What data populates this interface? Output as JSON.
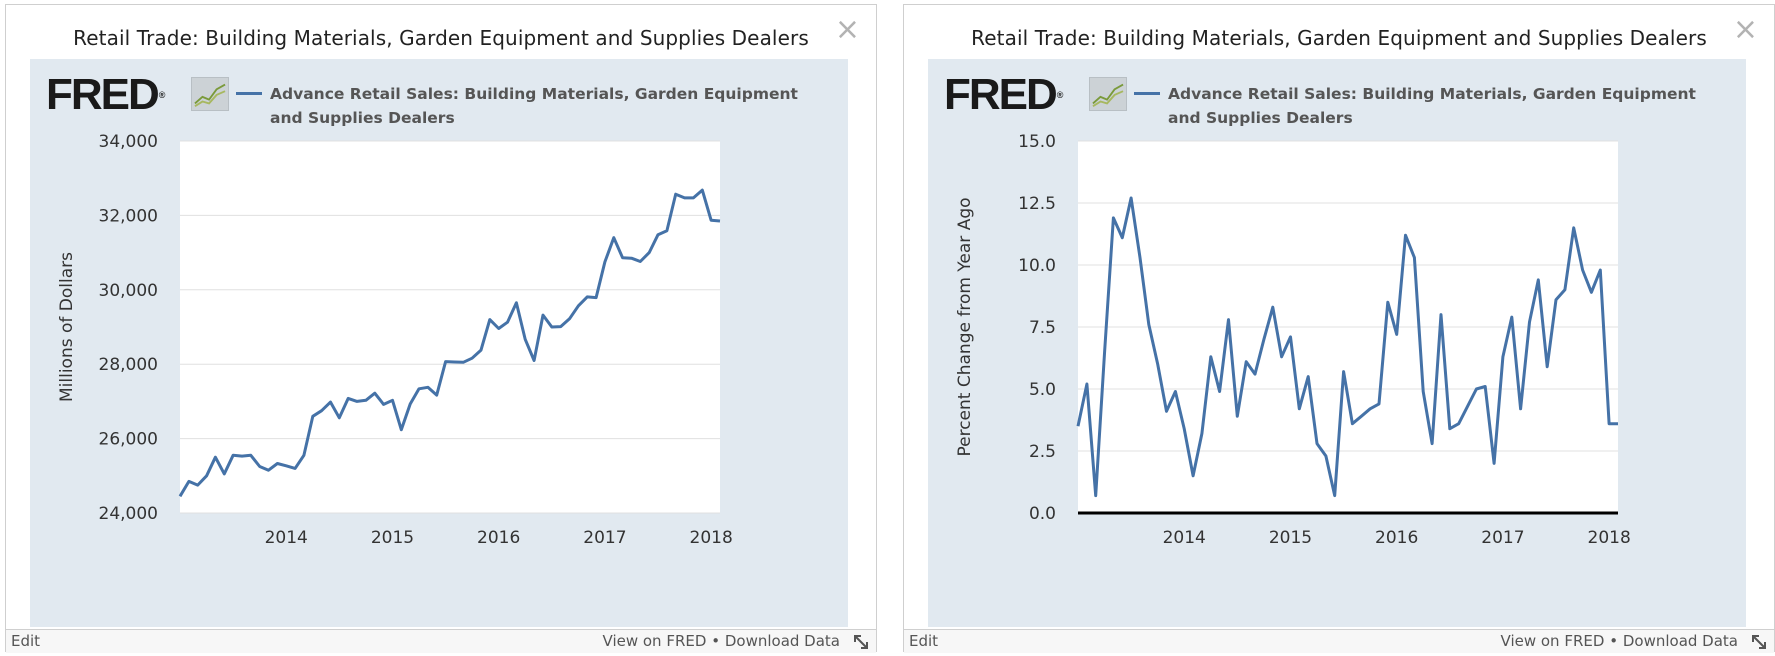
{
  "widgets": [
    {
      "title": "Retail Trade: Building Materials, Garden Equipment and Supplies Dealers",
      "close_label": "×",
      "logo_text": "FRED",
      "logo_reg": "®",
      "legend_label": "Advance Retail Sales: Building Materials, Garden Equipment and Supplies Dealers",
      "edit_label": "Edit",
      "view_label": "View on FRED",
      "separator": "•",
      "download_label": "Download Data"
    },
    {
      "title": "Retail Trade: Building Materials, Garden Equipment and Supplies Dealers",
      "close_label": "×",
      "logo_text": "FRED",
      "logo_reg": "®",
      "legend_label": "Advance Retail Sales: Building Materials, Garden Equipment and Supplies Dealers",
      "edit_label": "Edit",
      "view_label": "View on FRED",
      "separator": "•",
      "download_label": "Download Data"
    }
  ],
  "colors": {
    "series": "#4572a7",
    "panel_bg": "#e1e9f0",
    "plot_bg": "#ffffff",
    "gridline": "#e0e0e0",
    "zero_line": "#000000"
  },
  "chart_data": [
    {
      "type": "line",
      "title": "",
      "xlabel": "",
      "ylabel": "Millions of Dollars",
      "xlim": [
        "2013-01",
        "2018-02"
      ],
      "ylim": [
        24000,
        34000
      ],
      "y_ticks": [
        "24,000",
        "26,000",
        "28,000",
        "30,000",
        "32,000",
        "34,000"
      ],
      "y_tick_values": [
        24000,
        26000,
        28000,
        30000,
        32000,
        34000
      ],
      "x_ticks": [
        "2014",
        "2015",
        "2016",
        "2017",
        "2018"
      ],
      "x_tick_dates": [
        "2014-01",
        "2015-01",
        "2016-01",
        "2017-01",
        "2018-01"
      ],
      "grid": true,
      "legend_position": "top",
      "series": [
        {
          "name": "Advance Retail Sales: Building Materials, Garden Equipment and Supplies Dealers",
          "x": [
            "2013-01",
            "2013-02",
            "2013-03",
            "2013-04",
            "2013-05",
            "2013-06",
            "2013-07",
            "2013-08",
            "2013-09",
            "2013-10",
            "2013-11",
            "2013-12",
            "2014-01",
            "2014-02",
            "2014-03",
            "2014-04",
            "2014-05",
            "2014-06",
            "2014-07",
            "2014-08",
            "2014-09",
            "2014-10",
            "2014-11",
            "2014-12",
            "2015-01",
            "2015-02",
            "2015-03",
            "2015-04",
            "2015-05",
            "2015-06",
            "2015-07",
            "2015-08",
            "2015-09",
            "2015-10",
            "2015-11",
            "2015-12",
            "2016-01",
            "2016-02",
            "2016-03",
            "2016-04",
            "2016-05",
            "2016-06",
            "2016-07",
            "2016-08",
            "2016-09",
            "2016-10",
            "2016-11",
            "2016-12",
            "2017-01",
            "2017-02",
            "2017-03",
            "2017-04",
            "2017-05",
            "2017-06",
            "2017-07",
            "2017-08",
            "2017-09",
            "2017-10",
            "2017-11",
            "2017-12",
            "2018-01",
            "2018-02"
          ],
          "values": [
            24450,
            24850,
            24750,
            25000,
            25500,
            25050,
            25550,
            25530,
            25550,
            25250,
            25150,
            25330,
            25270,
            25200,
            25550,
            26600,
            26750,
            26980,
            26560,
            27080,
            27000,
            27030,
            27220,
            26920,
            27030,
            26240,
            26930,
            27340,
            27380,
            27170,
            28070,
            28060,
            28050,
            28160,
            28380,
            29200,
            28960,
            29130,
            29650,
            28670,
            28100,
            29320,
            29000,
            29010,
            29220,
            29570,
            29810,
            29790,
            30750,
            31400,
            30860,
            30850,
            30760,
            31000,
            31480,
            31590,
            32570,
            32470,
            32470,
            32680,
            31870,
            31850
          ]
        }
      ]
    },
    {
      "type": "line",
      "title": "",
      "xlabel": "",
      "ylabel": "Percent Change from Year Ago",
      "xlim": [
        "2013-01",
        "2018-02"
      ],
      "ylim": [
        0,
        15
      ],
      "y_ticks": [
        "0.0",
        "2.5",
        "5.0",
        "7.5",
        "10.0",
        "12.5",
        "15.0"
      ],
      "y_tick_values": [
        0,
        2.5,
        5,
        7.5,
        10,
        12.5,
        15
      ],
      "x_ticks": [
        "2014",
        "2015",
        "2016",
        "2017",
        "2018"
      ],
      "x_tick_dates": [
        "2014-01",
        "2015-01",
        "2016-01",
        "2017-01",
        "2018-01"
      ],
      "grid": true,
      "zero_line": true,
      "legend_position": "top",
      "series": [
        {
          "name": "Advance Retail Sales: Building Materials, Garden Equipment and Supplies Dealers",
          "x": [
            "2013-01",
            "2013-02",
            "2013-03",
            "2013-04",
            "2013-05",
            "2013-06",
            "2013-07",
            "2013-08",
            "2013-09",
            "2013-10",
            "2013-11",
            "2013-12",
            "2014-01",
            "2014-02",
            "2014-03",
            "2014-04",
            "2014-05",
            "2014-06",
            "2014-07",
            "2014-08",
            "2014-09",
            "2014-10",
            "2014-11",
            "2014-12",
            "2015-01",
            "2015-02",
            "2015-03",
            "2015-04",
            "2015-05",
            "2015-06",
            "2015-07",
            "2015-08",
            "2015-09",
            "2015-10",
            "2015-11",
            "2015-12",
            "2016-01",
            "2016-02",
            "2016-03",
            "2016-04",
            "2016-05",
            "2016-06",
            "2016-07",
            "2016-08",
            "2016-09",
            "2016-10",
            "2016-11",
            "2016-12",
            "2017-01",
            "2017-02",
            "2017-03",
            "2017-04",
            "2017-05",
            "2017-06",
            "2017-07",
            "2017-08",
            "2017-09",
            "2017-10",
            "2017-11",
            "2017-12",
            "2018-01",
            "2018-02"
          ],
          "values": [
            3.5,
            5.2,
            0.7,
            6.5,
            11.9,
            11.1,
            12.7,
            10.3,
            7.6,
            6.0,
            4.1,
            4.9,
            3.4,
            1.5,
            3.2,
            6.3,
            4.9,
            7.8,
            3.9,
            6.1,
            5.6,
            7.0,
            8.3,
            6.3,
            7.1,
            4.2,
            5.5,
            2.8,
            2.3,
            0.7,
            5.7,
            3.6,
            3.9,
            4.2,
            4.4,
            8.5,
            7.2,
            11.2,
            10.3,
            4.9,
            2.8,
            8.0,
            3.4,
            3.6,
            4.3,
            5.0,
            5.1,
            2.0,
            6.3,
            7.9,
            4.2,
            7.7,
            9.4,
            5.9,
            8.6,
            9.0,
            11.5,
            9.8,
            8.9,
            9.8,
            3.6,
            3.6
          ]
        }
      ]
    }
  ]
}
